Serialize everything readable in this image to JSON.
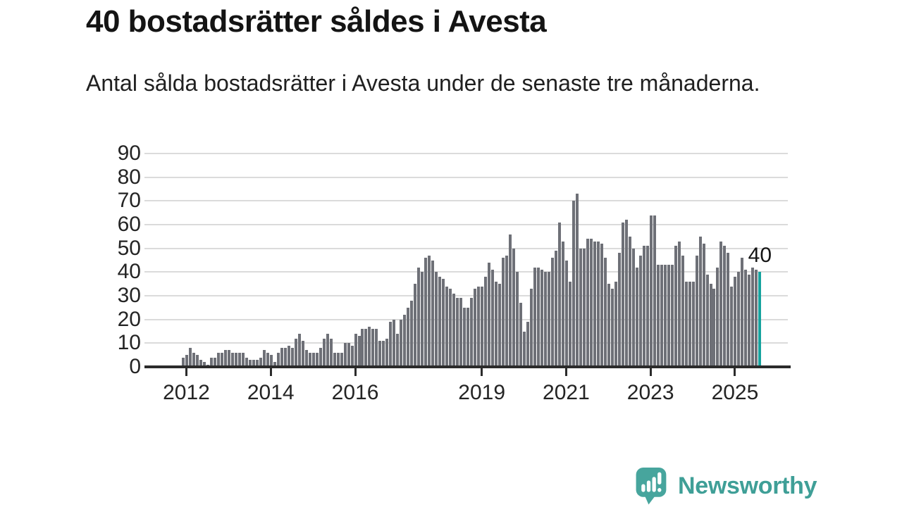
{
  "title": "40 bostadsrätter såldes i Avesta",
  "subtitle": "Antal sålda bostadsrätter i Avesta under de senaste tre månaderna.",
  "branding": {
    "name": "Newsworthy",
    "logo_icon": "newsworthy-speech-bubble-chart-icon",
    "color": "#3f9f97"
  },
  "colors": {
    "bar": "#6e7077",
    "highlight": "#16a39e",
    "gridline": "#dbdbdb",
    "axis": "#2b2b2b",
    "text": "#1a1a1a"
  },
  "chart_data": {
    "type": "bar",
    "title": "40 bostadsrätter såldes i Avesta",
    "subtitle": "Antal sålda bostadsrätter i Avesta under de senaste tre månaderna.",
    "xlabel": "",
    "ylabel": "",
    "ylim": [
      0,
      90
    ],
    "grid": "horizontal",
    "y_tick_labels": [
      "0",
      "10",
      "20",
      "30",
      "40",
      "50",
      "60",
      "70",
      "80",
      "90"
    ],
    "x_tick_labels": [
      "2012",
      "2014",
      "2016",
      "2019",
      "2021",
      "2023",
      "2025"
    ],
    "x_start": "2012-01",
    "x_end": "2025-09",
    "frequency": "monthly",
    "series": [
      {
        "name": "Antal sålda bostadsrätter (rullande tre månader)",
        "values": [
          4,
          5,
          8,
          6,
          5,
          3,
          2,
          1,
          4,
          4,
          6,
          6,
          7,
          7,
          6,
          6,
          6,
          6,
          4,
          3,
          3,
          3,
          4,
          7,
          6,
          5,
          2,
          6,
          8,
          8,
          9,
          8,
          12,
          14,
          11,
          7,
          6,
          6,
          6,
          8,
          12,
          14,
          12,
          6,
          6,
          6,
          10,
          10,
          9,
          14,
          13,
          16,
          16,
          17,
          16,
          16,
          11,
          11,
          12,
          19,
          20,
          14,
          20,
          22,
          25,
          28,
          35,
          42,
          40,
          46,
          47,
          45,
          40,
          38,
          37,
          34,
          33,
          31,
          29,
          29,
          25,
          25,
          29,
          33,
          34,
          34,
          38,
          44,
          41,
          36,
          35,
          46,
          47,
          56,
          50,
          40,
          27,
          15,
          19,
          33,
          42,
          42,
          41,
          40,
          40,
          46,
          49,
          61,
          53,
          45,
          36,
          70,
          73,
          50,
          50,
          54,
          54,
          53,
          53,
          52,
          46,
          35,
          33,
          36,
          48,
          61,
          62,
          55,
          50,
          42,
          47,
          51,
          51,
          64,
          64,
          43,
          43,
          43,
          43,
          43,
          51,
          53,
          47,
          36,
          36,
          36,
          47,
          55,
          52,
          39,
          35,
          33,
          42,
          53,
          51,
          48,
          34,
          38,
          40,
          46,
          41,
          39,
          42,
          41,
          40
        ]
      }
    ],
    "highlight": {
      "index": 164,
      "value": 40,
      "label": "40"
    }
  }
}
